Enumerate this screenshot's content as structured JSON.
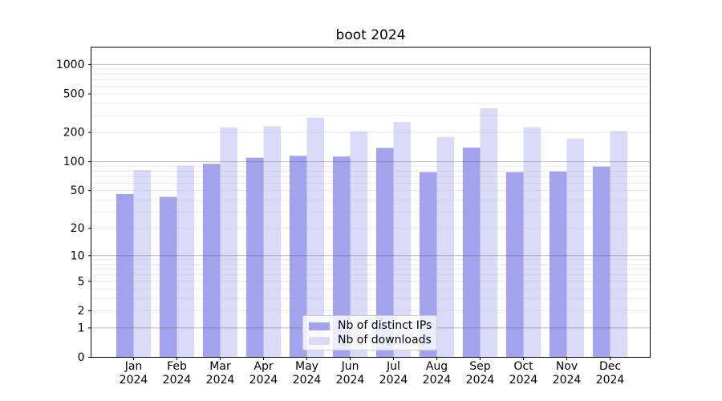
{
  "chart_data": {
    "type": "bar",
    "title": "boot 2024",
    "categories": [
      {
        "month": "Jan",
        "year": "2024"
      },
      {
        "month": "Feb",
        "year": "2024"
      },
      {
        "month": "Mar",
        "year": "2024"
      },
      {
        "month": "Apr",
        "year": "2024"
      },
      {
        "month": "May",
        "year": "2024"
      },
      {
        "month": "Jun",
        "year": "2024"
      },
      {
        "month": "Jul",
        "year": "2024"
      },
      {
        "month": "Aug",
        "year": "2024"
      },
      {
        "month": "Sep",
        "year": "2024"
      },
      {
        "month": "Oct",
        "year": "2024"
      },
      {
        "month": "Nov",
        "year": "2024"
      },
      {
        "month": "Dec",
        "year": "2024"
      }
    ],
    "series": [
      {
        "name": "Nb of distinct IPs",
        "color": "#a2a2ee",
        "values": [
          46,
          43,
          95,
          110,
          115,
          113,
          139,
          78,
          140,
          78,
          79,
          89
        ]
      },
      {
        "name": "Nb of downloads",
        "color": "#dbdbf9",
        "values": [
          82,
          91,
          226,
          232,
          285,
          205,
          258,
          180,
          355,
          228,
          173,
          207
        ]
      }
    ],
    "xlabel": "",
    "ylabel": "",
    "yscale": "log1p",
    "ylim": [
      0,
      1500
    ],
    "yticks": [
      0,
      1,
      2,
      5,
      10,
      20,
      50,
      100,
      200,
      500,
      1000
    ],
    "grid": true,
    "grid_major": [
      1,
      10,
      100,
      1000
    ],
    "grid_minor": [
      2,
      3,
      4,
      5,
      6,
      7,
      8,
      9,
      20,
      30,
      40,
      50,
      60,
      70,
      80,
      90,
      200,
      300,
      400,
      500,
      600,
      700,
      800,
      900
    ],
    "legend_position": "lower center",
    "colors": {
      "axis": "#000000",
      "grid_major": "rgba(100,100,100,0.45)",
      "grid_minor": "rgba(170,170,170,0.30)",
      "background": "#ffffff"
    }
  }
}
